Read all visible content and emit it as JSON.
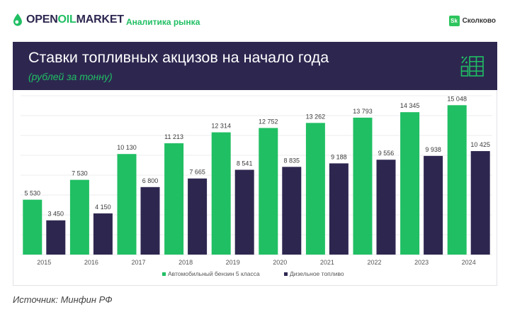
{
  "brand": {
    "logo_open": "OPEN",
    "logo_oil": "OIL",
    "logo_market": "MARKET",
    "section": "Аналитика рынка",
    "partner_mark": "Sk",
    "partner_name": "Сколково"
  },
  "header": {
    "title": "Ставки топливных акцизов на начало года",
    "subtitle": "(рублей за тонну)",
    "icon": "table-percent-icon"
  },
  "colors": {
    "navy": "#2d2750",
    "green": "#20bf63",
    "gasoline": "#20bf63",
    "diesel": "#2d2750"
  },
  "chart_data": {
    "type": "bar",
    "categories": [
      "2015",
      "2016",
      "2017",
      "2018",
      "2019",
      "2020",
      "2021",
      "2022",
      "2023",
      "2024"
    ],
    "series": [
      {
        "name": "Автомобильный бензин 5 класса",
        "color": "#20bf63",
        "values": [
          5530,
          7530,
          10130,
          11213,
          12314,
          12752,
          13262,
          13793,
          14345,
          15048
        ],
        "labels": [
          "5 530",
          "7 530",
          "10 130",
          "11 213",
          "12 314",
          "12 752",
          "13 262",
          "13 793",
          "14 345",
          "15 048"
        ]
      },
      {
        "name": "Дизельное топливо",
        "color": "#2d2750",
        "values": [
          3450,
          4150,
          6800,
          7665,
          8541,
          8835,
          9188,
          9556,
          9938,
          10425
        ],
        "labels": [
          "3 450",
          "4 150",
          "6 800",
          "7 665",
          "8 541",
          "8 835",
          "9 188",
          "9 556",
          "9 938",
          "10 425"
        ]
      }
    ],
    "ylim": [
      0,
      16000
    ],
    "grid": true,
    "legend_position": "bottom"
  },
  "source": "Источник: Минфин РФ"
}
